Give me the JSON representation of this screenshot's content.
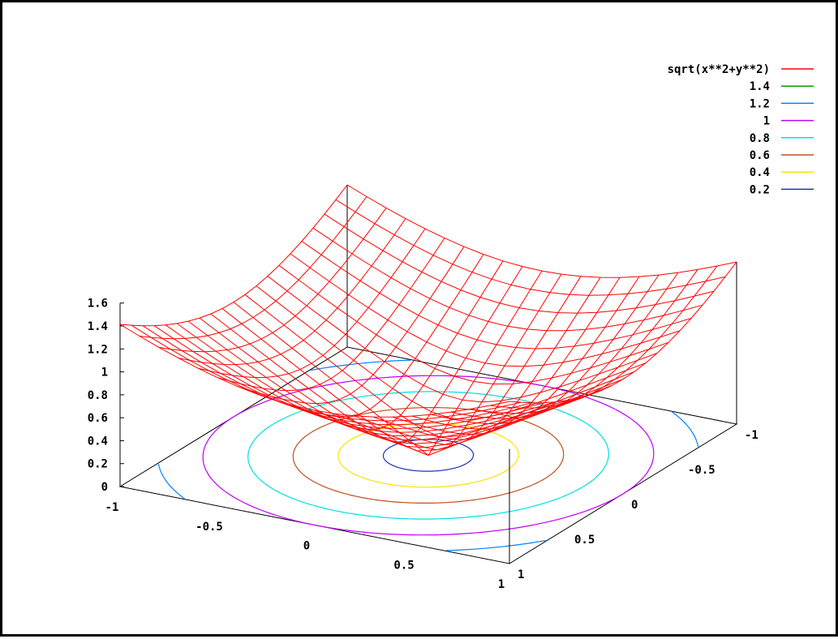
{
  "chart_data": {
    "type": "surface",
    "function": "sqrt(x**2+y**2)",
    "x_range": [
      -1,
      1
    ],
    "y_range": [
      -1,
      1
    ],
    "z_range": [
      0,
      1.6
    ],
    "grid_samples": 21,
    "surface_color": "#ff0000",
    "z_ticks": [
      "1.6",
      "1.4",
      "1.2",
      "1",
      "0.8",
      "0.6",
      "0.4",
      "0.2",
      "0"
    ],
    "x_ticks": [
      "-1",
      "-0.5",
      "0",
      "0.5",
      "1"
    ],
    "y_ticks": [
      "1",
      "0.5",
      "0",
      "-0.5",
      "-1"
    ],
    "legend_position": "top-right",
    "legend": [
      {
        "label": "sqrt(x**2+y**2)",
        "color": "#ff0000"
      },
      {
        "label": "1.4",
        "color": "#00a000"
      },
      {
        "label": "1.2",
        "color": "#0080ff"
      },
      {
        "label": "1",
        "color": "#c000ff"
      },
      {
        "label": "0.8",
        "color": "#00e0e0"
      },
      {
        "label": "0.6",
        "color": "#c05020"
      },
      {
        "label": "0.4",
        "color": "#ffe000"
      },
      {
        "label": "0.2",
        "color": "#2030c0"
      }
    ],
    "contours": [
      {
        "level": 1.4,
        "color": "#00a000"
      },
      {
        "level": 1.2,
        "color": "#0080ff"
      },
      {
        "level": 1,
        "color": "#c000ff"
      },
      {
        "level": 0.8,
        "color": "#00e0e0"
      },
      {
        "level": 0.6,
        "color": "#c05020"
      },
      {
        "level": 0.4,
        "color": "#ffe000"
      },
      {
        "level": 0.2,
        "color": "#2030c0"
      }
    ]
  }
}
